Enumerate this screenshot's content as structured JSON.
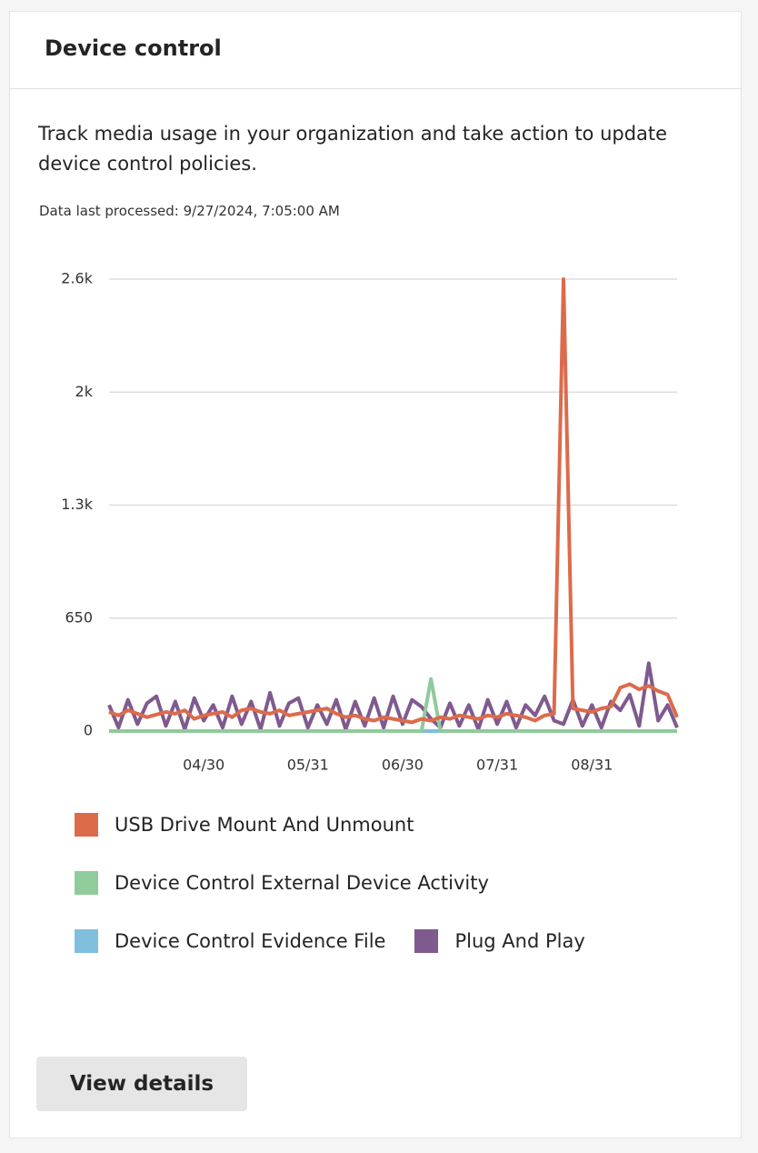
{
  "header": {
    "title": "Device control"
  },
  "description": "Track media usage in your organization and take action to update device control policies.",
  "last_processed": "Data last processed: 9/27/2024, 7:05:00 AM",
  "chart_data": {
    "type": "line",
    "categories": [
      null,
      null,
      null,
      null,
      null,
      null,
      null,
      null,
      null,
      null,
      "04/30",
      null,
      null,
      null,
      null,
      null,
      null,
      null,
      null,
      null,
      null,
      "05/31",
      null,
      null,
      null,
      null,
      null,
      null,
      null,
      null,
      null,
      "06/30",
      null,
      null,
      null,
      null,
      null,
      null,
      null,
      null,
      null,
      "07/31",
      null,
      null,
      null,
      null,
      null,
      null,
      null,
      null,
      null,
      "08/31",
      null,
      null,
      null,
      null,
      null,
      null,
      null,
      null,
      null
    ],
    "series": [
      {
        "name": "USB Drive Mount And Unmount",
        "color": "#dc6b4c",
        "values": [
          110,
          90,
          120,
          100,
          80,
          95,
          110,
          100,
          120,
          70,
          90,
          100,
          110,
          80,
          120,
          130,
          110,
          100,
          120,
          90,
          100,
          110,
          120,
          130,
          100,
          80,
          90,
          70,
          60,
          80,
          70,
          60,
          50,
          70,
          60,
          80,
          70,
          90,
          80,
          70,
          90,
          80,
          100,
          90,
          80,
          60,
          90,
          100,
          2600,
          130,
          120,
          110,
          130,
          140,
          250,
          270,
          240,
          260,
          230,
          210,
          80
        ]
      },
      {
        "name": "Device Control External Device Activity",
        "color": "#8fcb9b",
        "values": [
          0,
          0,
          0,
          0,
          0,
          0,
          0,
          0,
          0,
          0,
          0,
          0,
          0,
          0,
          0,
          0,
          0,
          0,
          0,
          0,
          0,
          0,
          0,
          0,
          0,
          0,
          0,
          0,
          0,
          0,
          0,
          0,
          0,
          0,
          300,
          0,
          0,
          0,
          0,
          0,
          0,
          0,
          0,
          0,
          0,
          0,
          0,
          0,
          0,
          0,
          0,
          0,
          0,
          0,
          0,
          0,
          0,
          0,
          0,
          0,
          0
        ]
      },
      {
        "name": "Device Control Evidence File",
        "color": "#7fbfdc",
        "values": [
          0,
          0,
          0,
          0,
          0,
          0,
          0,
          0,
          0,
          0,
          0,
          0,
          0,
          0,
          0,
          0,
          0,
          0,
          0,
          0,
          0,
          0,
          0,
          0,
          0,
          0,
          0,
          0,
          0,
          0,
          0,
          0,
          0,
          0,
          0,
          0,
          0,
          0,
          0,
          0,
          0,
          0,
          0,
          0,
          0,
          0,
          0,
          0,
          0,
          0,
          0,
          0,
          0,
          0,
          0,
          0,
          0,
          0,
          0,
          0,
          0
        ]
      },
      {
        "name": "Plug And Play",
        "color": "#7f5a8f",
        "values": [
          150,
          20,
          180,
          40,
          160,
          200,
          30,
          170,
          10,
          190,
          60,
          150,
          20,
          200,
          40,
          170,
          10,
          220,
          30,
          160,
          190,
          20,
          150,
          40,
          180,
          10,
          170,
          30,
          190,
          20,
          200,
          40,
          180,
          140,
          70,
          20,
          160,
          30,
          150,
          10,
          180,
          40,
          170,
          20,
          150,
          90,
          200,
          60,
          40,
          180,
          30,
          150,
          20,
          170,
          120,
          210,
          30,
          390,
          60,
          150,
          20
        ]
      }
    ],
    "ylim": [
      0,
      2600
    ],
    "yticks": [
      0,
      650,
      {
        "value": 1300,
        "label": "1.3k"
      },
      {
        "value": 1950,
        "label": "2k"
      },
      {
        "value": 2600,
        "label": "2.6k"
      }
    ],
    "grid": true
  },
  "button": {
    "label": "View details"
  }
}
